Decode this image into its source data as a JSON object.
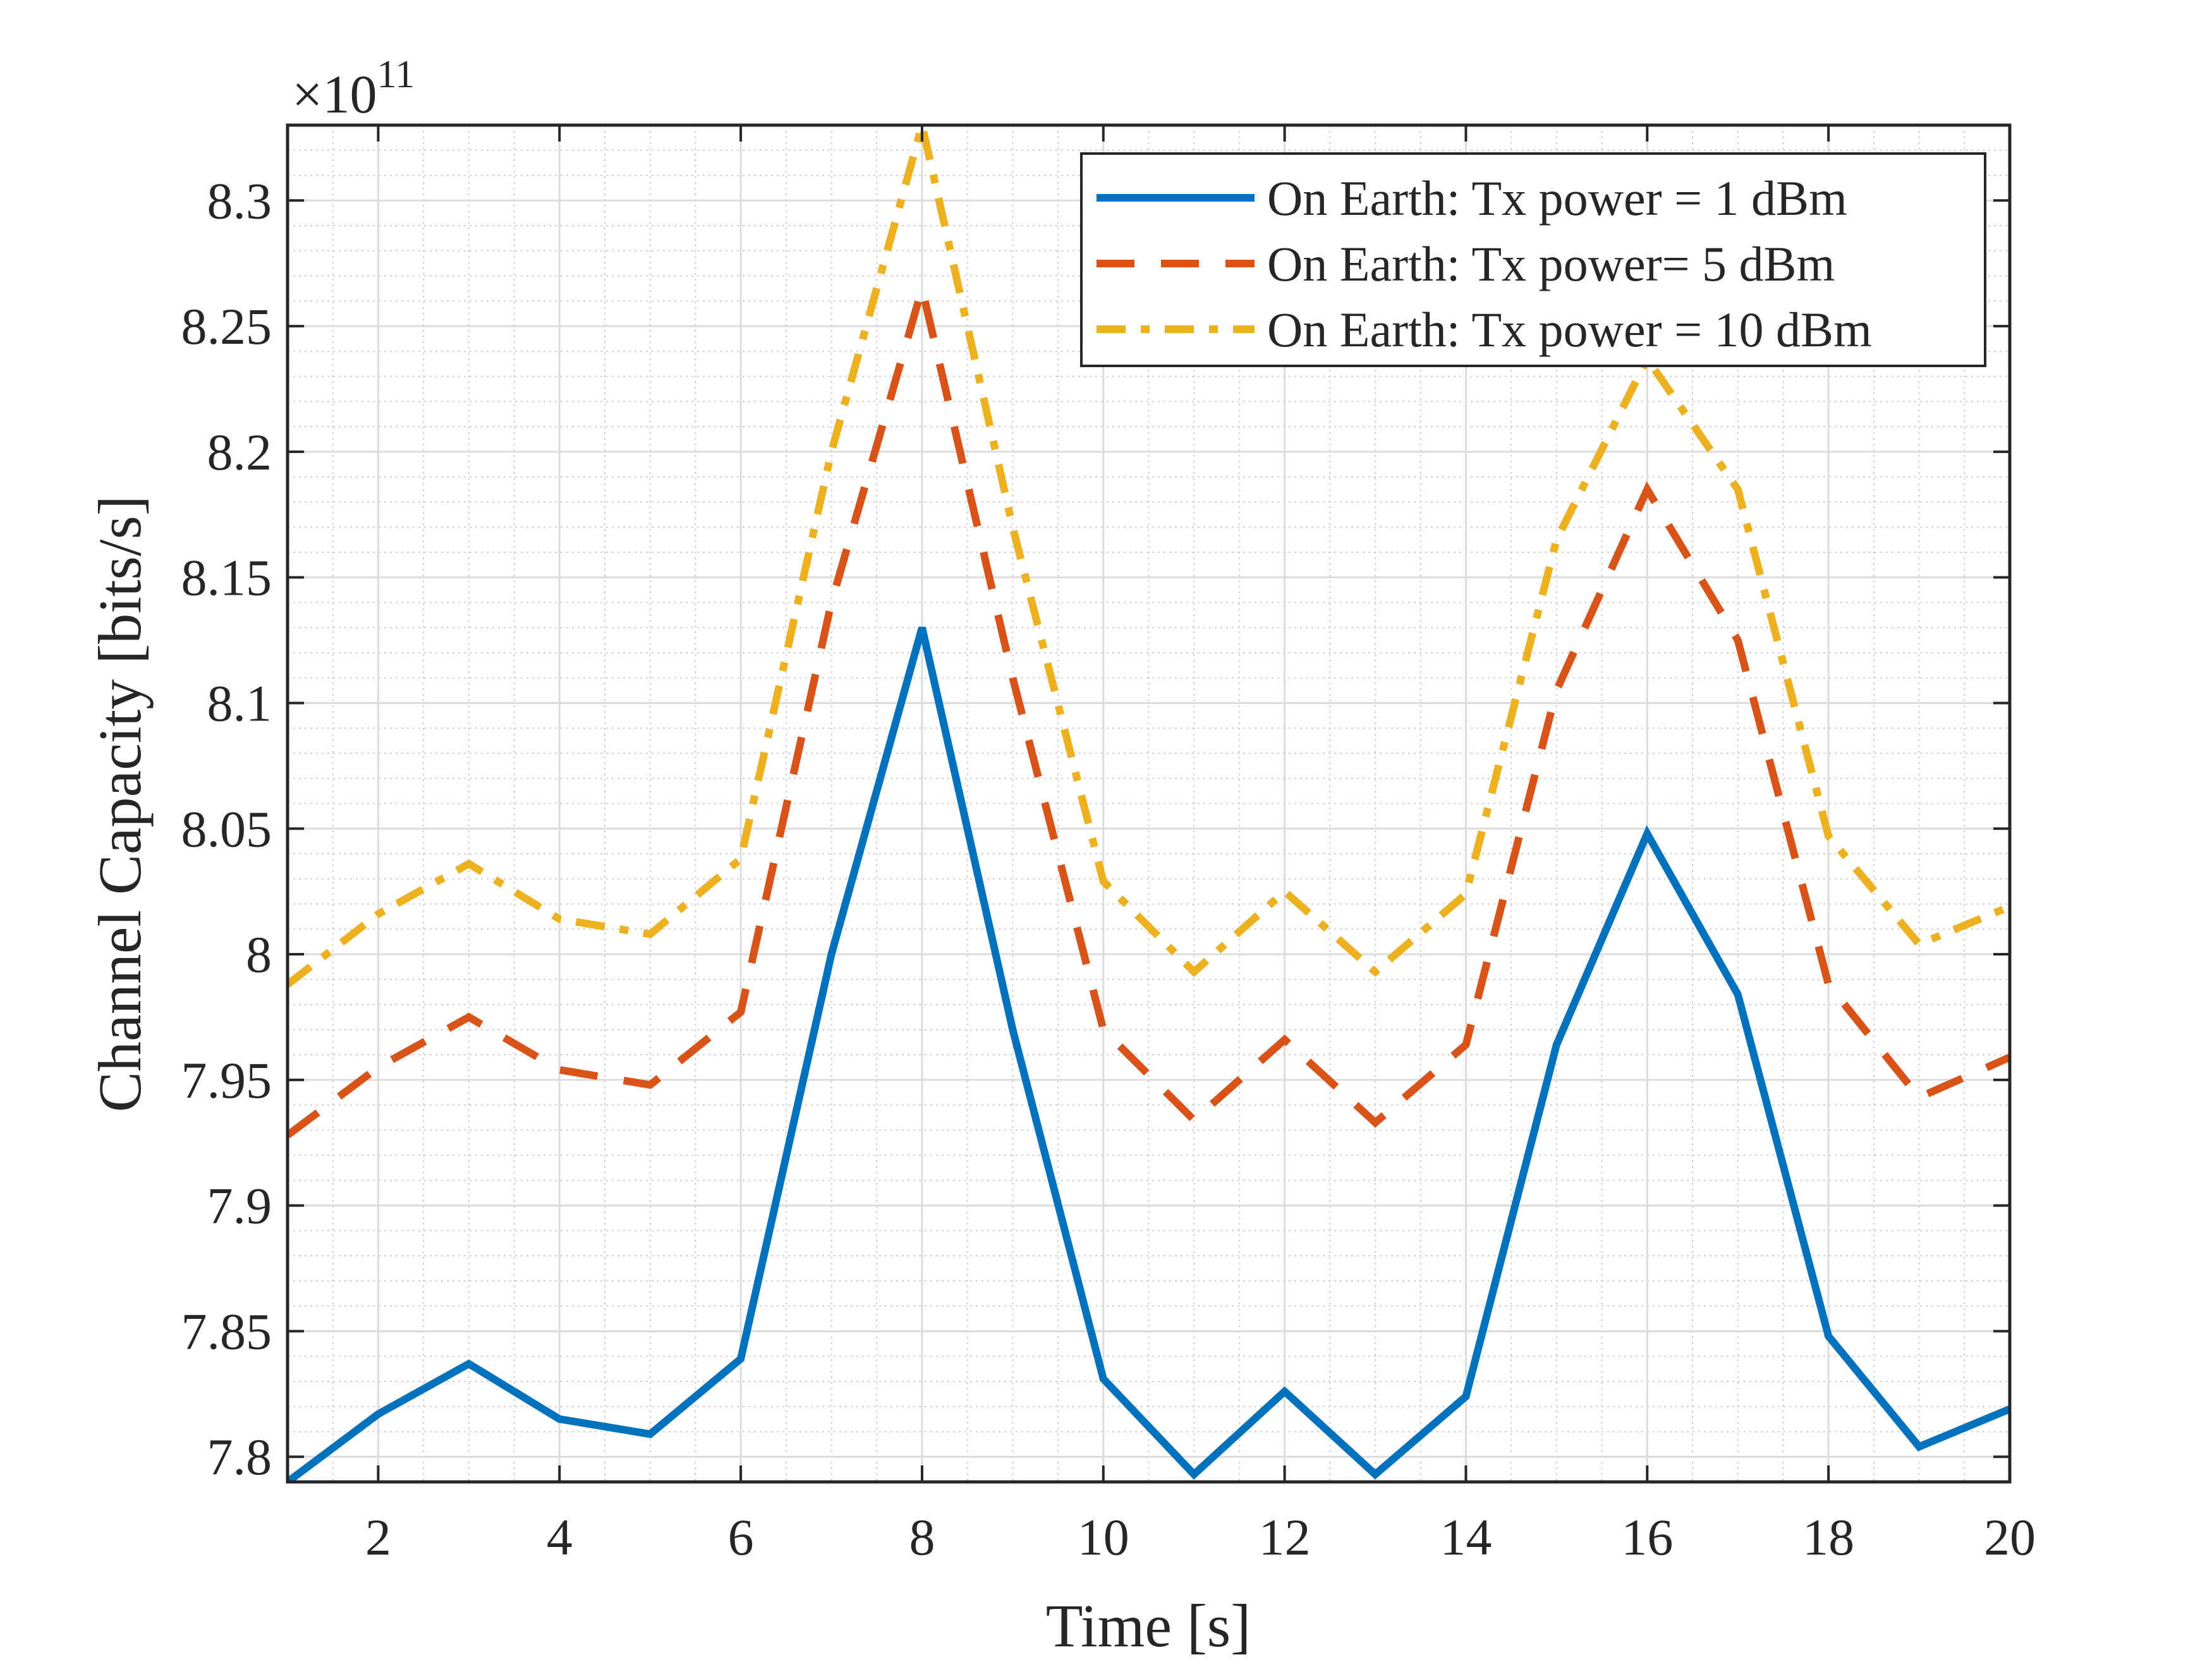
{
  "chart_data": {
    "type": "line",
    "title": "",
    "xlabel": "Time [s]",
    "ylabel": "Channel Capacity [bits/s]",
    "y_exponent_label": "×10",
    "y_exponent_power": "11",
    "xlim": [
      1,
      20
    ],
    "ylim": [
      7.79,
      8.33
    ],
    "x_ticks": [
      2,
      4,
      6,
      8,
      10,
      12,
      14,
      16,
      18,
      20
    ],
    "x_tick_labels": [
      "2",
      "4",
      "6",
      "8",
      "10",
      "12",
      "14",
      "16",
      "18",
      "20"
    ],
    "y_ticks": [
      7.8,
      7.85,
      7.9,
      7.95,
      8.0,
      8.05,
      8.1,
      8.15,
      8.2,
      8.25,
      8.3
    ],
    "y_tick_labels": [
      "7.8",
      "7.85",
      "7.9",
      "7.95",
      "8",
      "8.05",
      "8.1",
      "8.15",
      "8.2",
      "8.25",
      "8.3"
    ],
    "grid": true,
    "minor_grid": true,
    "legend_position": "top-right",
    "x": [
      1,
      2,
      3,
      4,
      5,
      6,
      7,
      8,
      9,
      10,
      11,
      12,
      13,
      14,
      15,
      16,
      17,
      18,
      19,
      20
    ],
    "series": [
      {
        "name": "On Earth: Tx power = 1 dBm",
        "color": "#0072BD",
        "style": "solid",
        "values": [
          7.79,
          7.817,
          7.837,
          7.815,
          7.809,
          7.839,
          8.0,
          8.13,
          7.97,
          7.831,
          7.793,
          7.826,
          7.793,
          7.824,
          7.964,
          8.048,
          7.984,
          7.848,
          7.804,
          7.819
        ]
      },
      {
        "name": "On Earth: Tx power= 5 dBm",
        "color": "#D95319",
        "style": "dashed",
        "values": [
          7.928,
          7.955,
          7.975,
          7.954,
          7.948,
          7.977,
          8.14,
          8.265,
          8.11,
          7.97,
          7.934,
          7.966,
          7.933,
          7.964,
          8.105,
          8.185,
          8.125,
          7.988,
          7.943,
          7.959
        ]
      },
      {
        "name": "On Earth: Tx power = 10 dBm",
        "color": "#EDB120",
        "style": "dashdot",
        "values": [
          7.988,
          8.016,
          8.036,
          8.014,
          8.008,
          8.038,
          8.2,
          8.33,
          8.17,
          8.029,
          7.993,
          8.025,
          7.993,
          8.024,
          8.165,
          8.237,
          8.185,
          8.047,
          8.004,
          8.019
        ]
      }
    ]
  }
}
